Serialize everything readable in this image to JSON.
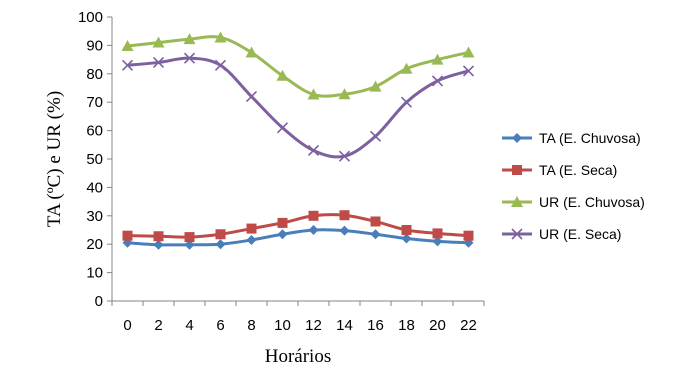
{
  "chart_data": {
    "type": "line",
    "xlabel": "Horários",
    "ylabel": "TA (ºC) e UR (%)",
    "x": [
      0,
      2,
      4,
      6,
      8,
      10,
      12,
      14,
      16,
      18,
      20,
      22
    ],
    "ylim": [
      0,
      100
    ],
    "yticks": [
      0,
      10,
      20,
      30,
      40,
      50,
      60,
      70,
      80,
      90,
      100
    ],
    "grid": false,
    "legend_position": "right",
    "series": [
      {
        "name": "TA (E. Chuvosa)",
        "color": "#4a7ebb",
        "marker": "diamond",
        "values": [
          20.5,
          19.8,
          19.8,
          20.0,
          21.5,
          23.5,
          25.0,
          24.8,
          23.5,
          22.0,
          21.0,
          20.5
        ]
      },
      {
        "name": "TA (E. Seca)",
        "color": "#be4b48",
        "marker": "square",
        "values": [
          23.0,
          22.8,
          22.5,
          23.5,
          25.5,
          27.5,
          30.0,
          30.2,
          28.0,
          25.0,
          23.8,
          23.0
        ]
      },
      {
        "name": "UR (E. Chuvosa)",
        "color": "#98b954",
        "marker": "triangle",
        "values": [
          89.8,
          91.0,
          92.2,
          92.8,
          87.5,
          79.3,
          72.7,
          72.8,
          75.5,
          81.8,
          85.0,
          87.5
        ]
      },
      {
        "name": "UR (E. Seca)",
        "color": "#7d60a0",
        "marker": "x",
        "values": [
          83.0,
          84.0,
          85.5,
          83.0,
          72.0,
          61.0,
          53.0,
          51.0,
          58.0,
          70.0,
          77.5,
          81.0
        ]
      }
    ]
  }
}
